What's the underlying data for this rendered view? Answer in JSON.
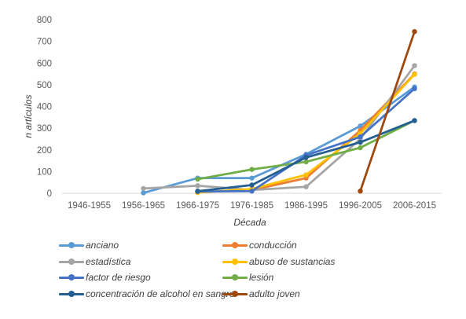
{
  "chart_data": {
    "type": "line",
    "title": "",
    "xlabel": "Década",
    "ylabel": "n artículos",
    "ylim": [
      0,
      800
    ],
    "yticks": [
      0,
      100,
      200,
      300,
      400,
      500,
      600,
      700,
      800
    ],
    "grid": false,
    "legend_position": "bottom",
    "categories": [
      "1946-1955",
      "1956-1965",
      "1966-1975",
      "1976-1985",
      "1986-1995",
      "1996-2005",
      "2006-2015"
    ],
    "series": [
      {
        "name": "anciano",
        "color": "#5B9BD5",
        "values": [
          null,
          2,
          70,
          70,
          180,
          310,
          490
        ]
      },
      {
        "name": "conducción",
        "color": "#ED7D31",
        "values": [
          null,
          null,
          5,
          15,
          70,
          290,
          550
        ]
      },
      {
        "name": "estadística",
        "color": "#A5A5A5",
        "values": [
          null,
          22,
          35,
          15,
          30,
          250,
          588
        ]
      },
      {
        "name": "abuso de sustancias",
        "color": "#FFC000",
        "values": [
          null,
          null,
          3,
          20,
          85,
          275,
          548
        ]
      },
      {
        "name": "factor de riesgo",
        "color": "#4472C4",
        "values": [
          null,
          null,
          8,
          10,
          175,
          260,
          482
        ]
      },
      {
        "name": "lesión",
        "color": "#70AD47",
        "values": [
          null,
          null,
          65,
          110,
          145,
          210,
          335
        ]
      },
      {
        "name": "concentración de alcohol en sangre",
        "color": "#255E91",
        "values": [
          null,
          null,
          10,
          38,
          165,
          235,
          335
        ]
      },
      {
        "name": "adulto joven",
        "color": "#9E480E",
        "values": [
          null,
          null,
          null,
          null,
          null,
          10,
          745
        ]
      }
    ]
  }
}
